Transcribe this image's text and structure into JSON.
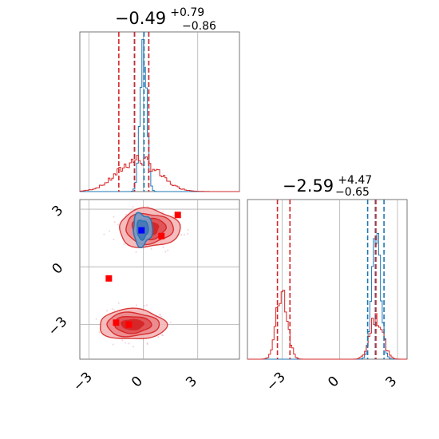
{
  "chart_data": {
    "type": "corner",
    "parameters": [
      {
        "title_main": "−0.49",
        "title_sup": "+0.79",
        "title_sub": "−0.86",
        "hist_range": [
          -4.3,
          5.3
        ],
        "quantiles_dist1": [
          -0.48,
          0.04,
          0.3
        ],
        "quantiles_dist2": [
          -1.35,
          -0.49,
          0.3
        ]
      },
      {
        "title_main": "−2.59",
        "title_sup": "+4.47",
        "title_sub": "−0.65",
        "hist_range": [
          -5.5,
          3.7
        ],
        "quantiles_dist1": [
          1.45,
          1.85,
          2.3
        ],
        "quantiles_dist2": [
          -3.24,
          -2.59,
          1.88
        ]
      }
    ],
    "ticks": {
      "x_param1": [
        "−3",
        "0",
        "3"
      ],
      "y_param2": [
        "3",
        "0",
        "−3"
      ],
      "x_param2": [
        "−3",
        "0",
        "3"
      ]
    },
    "tick_values": [
      -3,
      0,
      3
    ],
    "range_param1": [
      -3.5,
      5.3
    ],
    "range_param2": [
      -4.8,
      3.5
    ],
    "grid": true,
    "series": [
      {
        "color": "#1f77b4",
        "mode_p1": 0.0,
        "spread_p1": 0.18,
        "mode_p2": 1.9,
        "spread_p2": 0.22
      },
      {
        "color": "#d62728",
        "mode_p1": -0.3,
        "spread_p1": 1.1,
        "modes_p2": [
          -3.0,
          1.9
        ],
        "mode_weights": [
          0.55,
          0.45
        ]
      }
    ],
    "points": [
      {
        "color": "#0000ff",
        "x": -0.1,
        "y": 1.9
      },
      {
        "color": "#ff0000",
        "x": 1.9,
        "y": 2.7
      },
      {
        "color": "#ff0000",
        "x": 1.0,
        "y": 1.6
      },
      {
        "color": "#ff0000",
        "x": -1.9,
        "y": -0.6
      },
      {
        "color": "#ff0000",
        "x": -1.5,
        "y": -2.9
      },
      {
        "color": "#ff0000",
        "x": -0.8,
        "y": -3.0
      }
    ]
  }
}
